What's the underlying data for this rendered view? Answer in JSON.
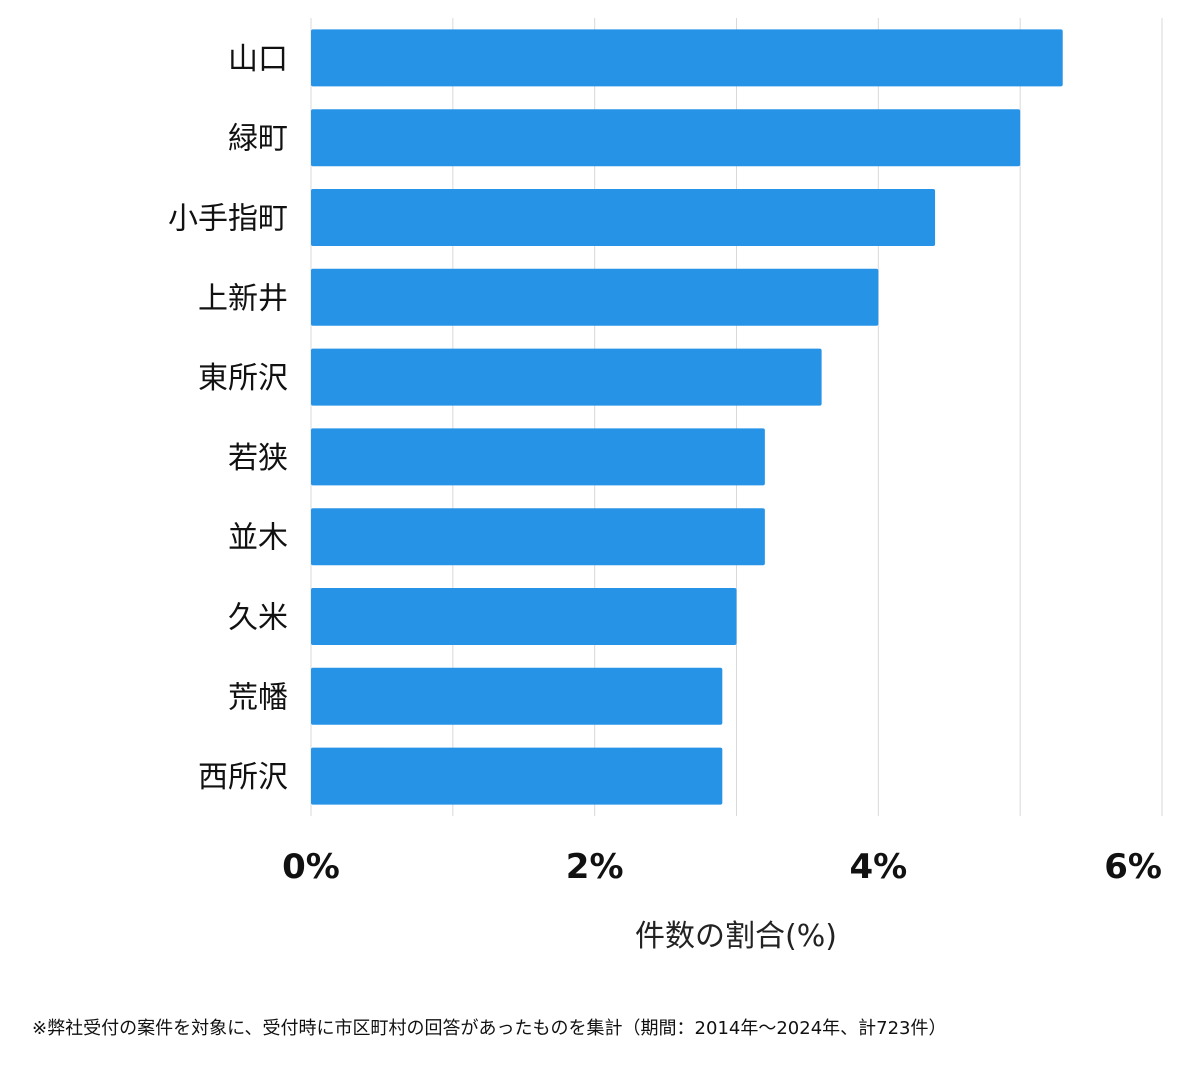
{
  "chart_data": {
    "type": "bar",
    "orientation": "horizontal",
    "categories": [
      "山口",
      "緑町",
      "小手指町",
      "上新井",
      "東所沢",
      "若狭",
      "並木",
      "久米",
      "荒幡",
      "西所沢"
    ],
    "values": [
      5.3,
      5.0,
      4.4,
      4.0,
      3.6,
      3.2,
      3.2,
      3.0,
      2.9,
      2.9
    ],
    "xlabel": "件数の割合(%)",
    "xlim": [
      0,
      6
    ],
    "xticks": [
      0,
      2,
      4,
      6
    ],
    "xtick_labels": [
      "0%",
      "2%",
      "4%",
      "6%"
    ],
    "grid": "vertical gridlines at 1% intervals",
    "bar_color": "#2693e6",
    "grid_color": "#d9d9d9"
  },
  "footnote": "※弊社受付の案件を対象に、受付時に市区町村の回答があったものを集計（期間：2014年～2024年、計723件）"
}
